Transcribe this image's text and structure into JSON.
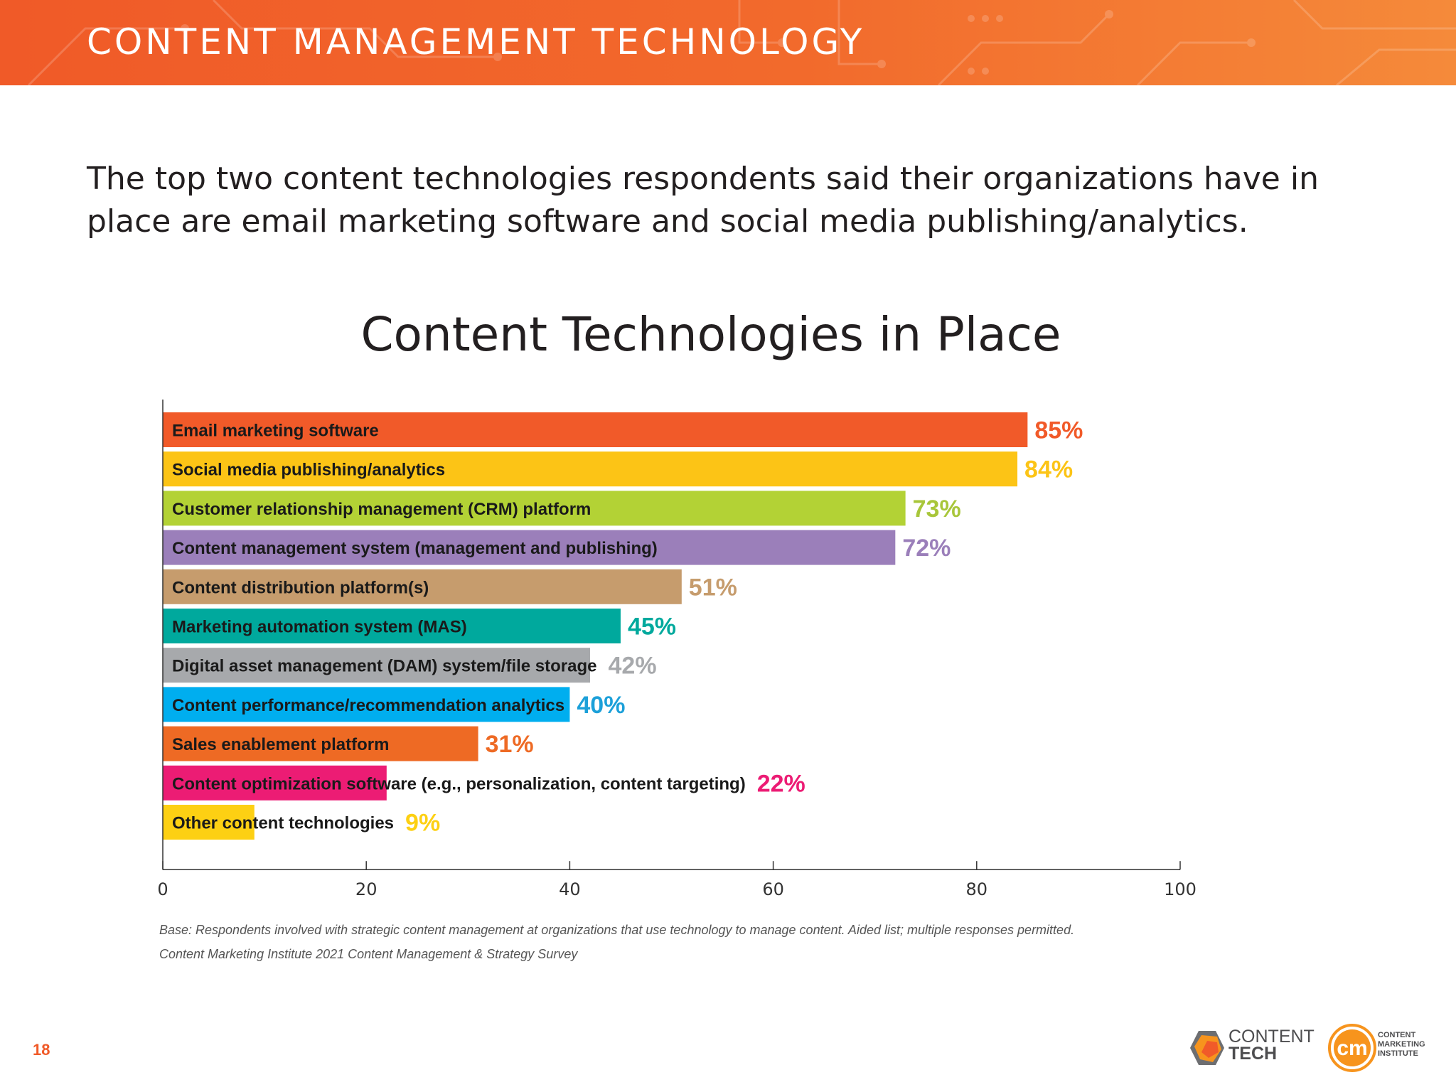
{
  "header": {
    "title": "CONTENT MANAGEMENT TECHNOLOGY"
  },
  "intro": "The top two content technologies respondents said their organizations have in place are email marketing software and social media publishing/analytics.",
  "chart_data": {
    "type": "bar",
    "orientation": "horizontal",
    "title": "Content Technologies in Place",
    "xlabel": "",
    "ylabel": "",
    "xlim": [
      0,
      100
    ],
    "xticks": [
      "0",
      "20",
      "40",
      "60",
      "80",
      "100"
    ],
    "grid": false,
    "categories": [
      "Email marketing software",
      "Social media publishing/analytics",
      "Customer relationship management (CRM) platform",
      "Content management system (management and publishing)",
      "Content distribution platform(s)",
      "Marketing automation system (MAS)",
      "Digital asset management (DAM) system/file storage",
      "Content performance/recommendation analytics",
      "Sales enablement platform",
      "Content optimization software (e.g., personalization, content targeting)",
      "Other content technologies"
    ],
    "values": [
      85,
      84,
      73,
      72,
      51,
      45,
      42,
      40,
      31,
      22,
      9
    ],
    "value_labels": [
      "85%",
      "84%",
      "73%",
      "72%",
      "51%",
      "45%",
      "42%",
      "40%",
      "31%",
      "22%",
      "9%"
    ],
    "colors": [
      "#f15a29",
      "#fcc416",
      "#b3d235",
      "#9b7fba",
      "#c69c6d",
      "#00a99d",
      "#a7a9ac",
      "#00aeef",
      "#ee6a24",
      "#ec1c74",
      "#fdd013"
    ],
    "label_colors": [
      "#f15a29",
      "#fcc416",
      "#a8c63a",
      "#9b7fba",
      "#c69c6d",
      "#00a99d",
      "#a7a9ac",
      "#1ca0d9",
      "#ee6a24",
      "#ec1c74",
      "#fdd013"
    ]
  },
  "notes": {
    "base": "Base: Respondents involved with strategic content management at organizations that use technology to manage content. Aided list; multiple responses permitted.",
    "source": "Content Marketing Institute 2021 Content Management & Strategy Survey"
  },
  "footer": {
    "page_number": "18",
    "logo_contenttech_top": "CONTENT",
    "logo_contenttech_bottom": "TECH",
    "logo_cmi_line1": "CONTENT",
    "logo_cmi_line2": "MARKETING",
    "logo_cmi_line3": "INSTITUTE",
    "logo_cmi_mark": "cm",
    "brand_orange": "#f05a28"
  }
}
